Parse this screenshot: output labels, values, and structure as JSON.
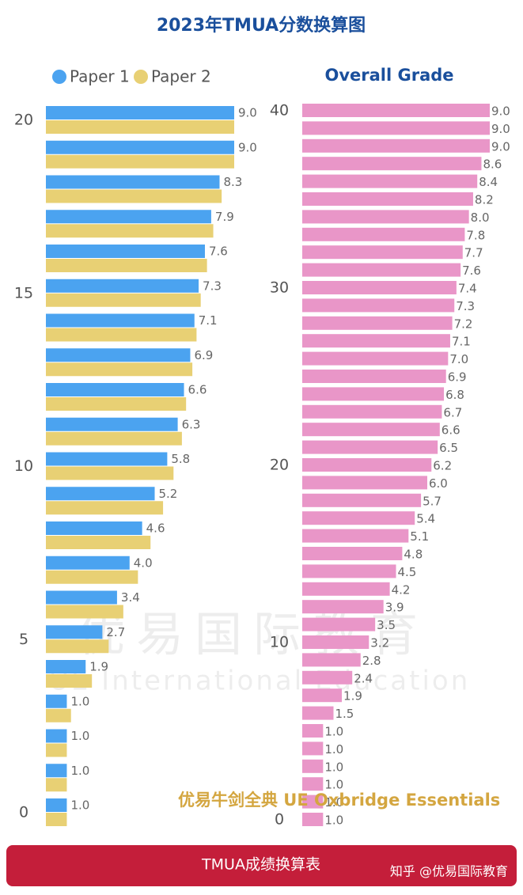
{
  "title": "2023年TMUA分数换算图",
  "chart_data": [
    {
      "type": "hbar",
      "categories": [
        "20",
        null,
        null,
        null,
        null,
        "15",
        null,
        null,
        null,
        null,
        "10",
        null,
        null,
        null,
        null,
        "5",
        null,
        null,
        null,
        null,
        "0"
      ],
      "series": [
        {
          "name": "Paper 1",
          "color": "#4ba3f0",
          "values": [
            9.0,
            9.0,
            8.3,
            7.9,
            7.6,
            7.3,
            7.1,
            6.9,
            6.6,
            6.3,
            5.8,
            5.2,
            4.6,
            4.0,
            3.4,
            2.7,
            1.9,
            1.0,
            1.0,
            1.0,
            1.0
          ],
          "value_labels": [
            "9.0",
            "9.0",
            "8.3",
            "7.9",
            "7.6",
            "7.3",
            "7.1",
            "6.9",
            "6.6",
            "6.3",
            "5.8",
            "5.2",
            "4.6",
            "4.0",
            "3.4",
            "2.7",
            "1.9",
            "1.0",
            "1.0",
            "1.0",
            "1.0"
          ]
        },
        {
          "name": "Paper 2",
          "color": "#e8d074",
          "values": [
            9.0,
            9.0,
            8.4,
            8.0,
            7.7,
            7.4,
            7.2,
            7.0,
            6.7,
            6.5,
            6.1,
            5.6,
            5.0,
            4.4,
            3.7,
            3.0,
            2.2,
            1.2,
            1.0,
            1.0,
            1.0
          ]
        }
      ]
    },
    {
      "type": "hbar",
      "title": "Overall Grade",
      "categories": [
        "40",
        null,
        null,
        null,
        null,
        null,
        null,
        null,
        null,
        null,
        "30",
        null,
        null,
        null,
        null,
        null,
        null,
        null,
        null,
        null,
        "20",
        null,
        null,
        null,
        null,
        null,
        null,
        null,
        null,
        null,
        "10",
        null,
        null,
        null,
        null,
        null,
        null,
        null,
        null,
        null,
        "0"
      ],
      "color": "#e996c8",
      "values": [
        9.0,
        9.0,
        9.0,
        8.6,
        8.4,
        8.2,
        8.0,
        7.8,
        7.7,
        7.6,
        7.4,
        7.3,
        7.2,
        7.1,
        7.0,
        6.9,
        6.8,
        6.7,
        6.6,
        6.5,
        6.2,
        6.0,
        5.7,
        5.4,
        5.1,
        4.8,
        4.5,
        4.2,
        3.9,
        3.5,
        3.2,
        2.8,
        2.4,
        1.9,
        1.5,
        1.0,
        1.0,
        1.0,
        1.0,
        1.0,
        1.0
      ],
      "value_labels": [
        "9.0",
        "9.0",
        "9.0",
        "8.6",
        "8.4",
        "8.2",
        "8.0",
        "7.8",
        "7.7",
        "7.6",
        "7.4",
        "7.3",
        "7.2",
        "7.1",
        "7.0",
        "6.9",
        "6.8",
        "6.7",
        "6.6",
        "6.5",
        "6.2",
        "6.0",
        "5.7",
        "5.4",
        "5.1",
        "4.8",
        "4.5",
        "4.2",
        "3.9",
        "3.5",
        "3.2",
        "2.8",
        "2.4",
        "1.9",
        "1.5",
        "1.0",
        "1.0",
        "1.0",
        "1.0",
        "1.0",
        "1.0"
      ]
    }
  ],
  "watermark": [
    "优易国际教育",
    "UE International Education"
  ],
  "brand": "优易牛剑全典 UE Oxbridge Essentials",
  "footer": {
    "label": "TMUA成绩换算表",
    "credit": "知乎 @优易国际教育"
  }
}
